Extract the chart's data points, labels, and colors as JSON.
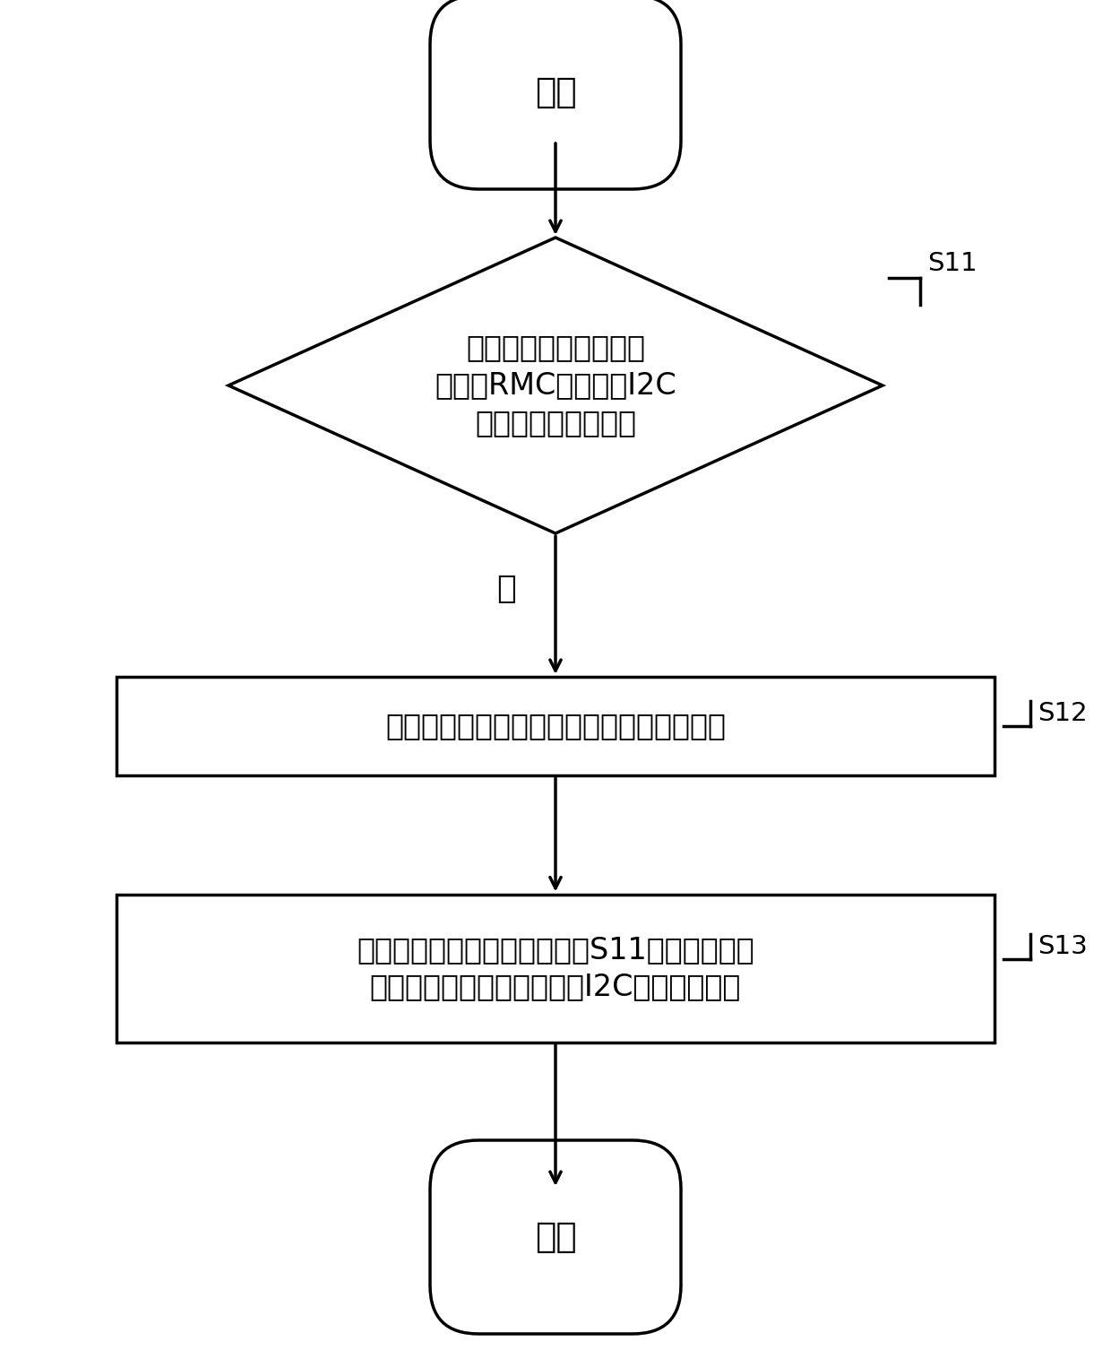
{
  "bg_color": "#ffffff",
  "line_color": "#000000",
  "text_color": "#000000",
  "start_text": "开始",
  "end_text": "结束",
  "diamond_text_lines": [
    "利用中板内的定时器中",
    "断检测RMC与中板的I2C",
    "总线中断是否被触发"
  ],
  "rect1_text_line": "对定时器中断中全局变量的当前计数值加一",
  "rect2_text_lines": [
    "以预设时间间隔重复执行步骤S11，直至当前计",
    "数值超过预设阈值，然后对I2C总线进行重置"
  ],
  "label_s11": "S11",
  "label_s12": "S12",
  "label_s13": "S13",
  "no_label": "否",
  "fig_width": 12.4,
  "fig_height": 15.06,
  "dpi": 100
}
